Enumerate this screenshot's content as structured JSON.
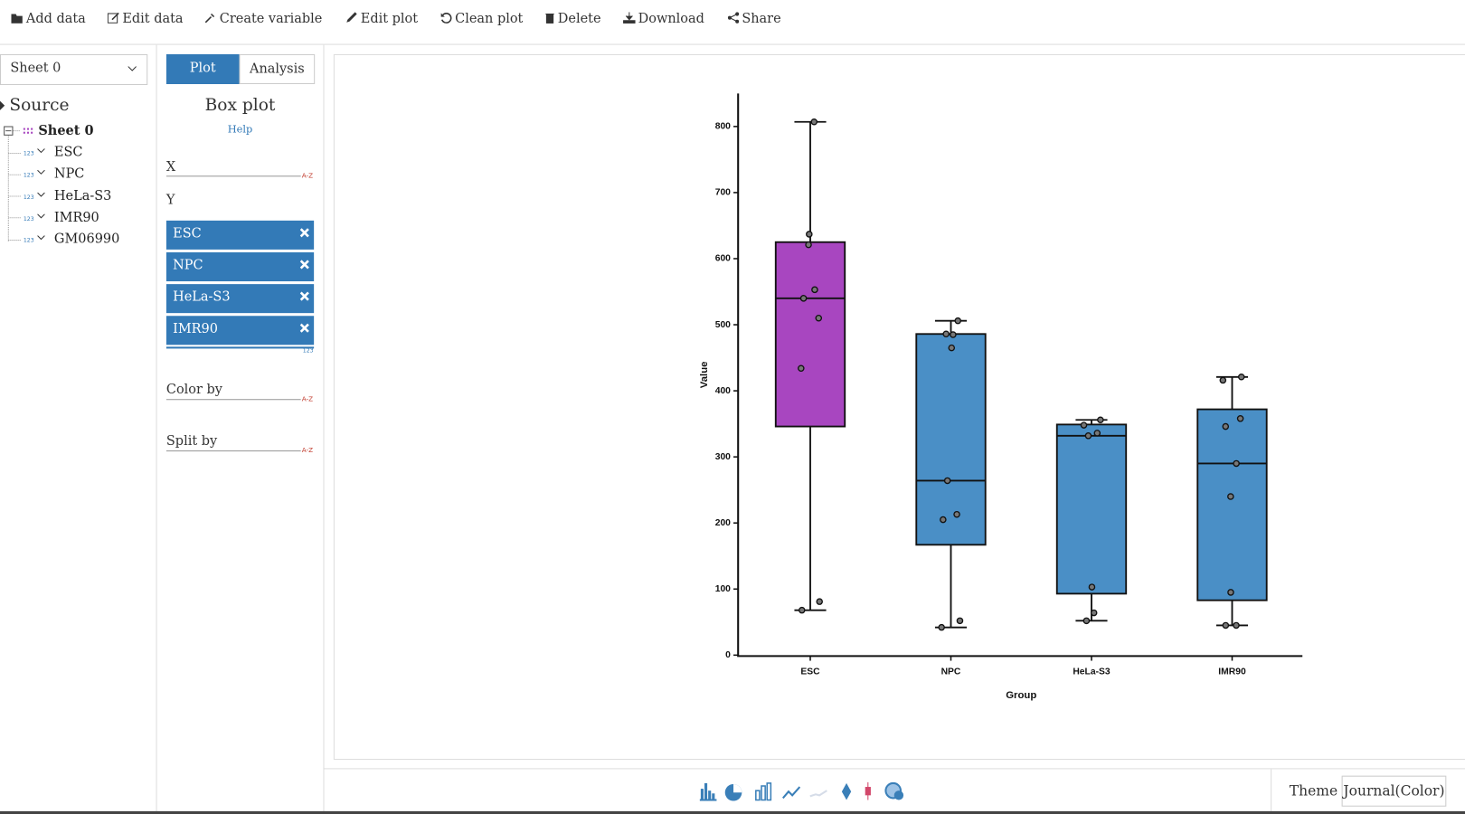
{
  "toolbar": [
    "Add data",
    "Edit data",
    "Create variable",
    "Edit plot",
    "Clean plot",
    "Delete",
    "Download",
    "Share"
  ],
  "sheet_select": "Sheet 0",
  "tree": {
    "root": "Source",
    "sheet": "Sheet 0",
    "columns": [
      "ESC",
      "NPC",
      "HeLa-S3",
      "IMR90",
      "GM06990"
    ],
    "type_tag": "123"
  },
  "tabs": [
    "Plot",
    "Analysis"
  ],
  "plot_panel": {
    "title": "Box plot",
    "help": "Help",
    "x_label": "X",
    "y_label": "Y",
    "y_columns": [
      "ESC",
      "NPC",
      "HeLa-S3",
      "IMR90"
    ],
    "sort_tag": "A-Z",
    "num_tag": "123",
    "color_by": "Color by",
    "split_by": "Split by"
  },
  "theme": {
    "label": "Theme",
    "value": "Journal(Color)"
  },
  "chart_data": {
    "type": "box",
    "x_label": "Group",
    "y_label": "Value",
    "categories": [
      "ESC",
      "NPC",
      "HeLa-S3",
      "IMR90"
    ],
    "colors": [
      "#a846c0",
      "#4a8fc6",
      "#4a8fc6",
      "#4a8fc6"
    ],
    "boxes": [
      {
        "min": 68,
        "q1": 346,
        "median": 540,
        "q3": 625,
        "max": 807,
        "points": [
          807,
          637,
          621,
          553,
          540,
          510,
          434,
          81,
          68
        ]
      },
      {
        "min": 42,
        "q1": 167,
        "median": 264,
        "q3": 486,
        "max": 506,
        "points": [
          506,
          486,
          485,
          465,
          264,
          213,
          205,
          52,
          42
        ]
      },
      {
        "min": 52,
        "q1": 93,
        "median": 332,
        "q3": 349,
        "max": 356,
        "points": [
          356,
          348,
          336,
          332,
          103,
          64,
          52
        ]
      },
      {
        "min": 45,
        "q1": 83,
        "median": 290,
        "q3": 372,
        "max": 421,
        "points": [
          421,
          416,
          358,
          346,
          290,
          240,
          95,
          45,
          45
        ]
      }
    ],
    "ylim": [
      0,
      850
    ],
    "yticks": [
      0,
      100,
      200,
      300,
      400,
      500,
      600,
      700,
      800
    ]
  }
}
